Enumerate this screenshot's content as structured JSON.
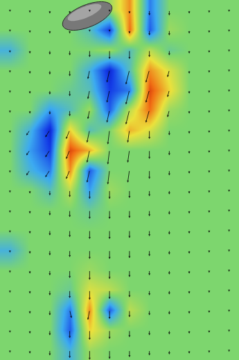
{
  "chart_data": {
    "type": "heatmap",
    "tick_labels": false,
    "grid": false,
    "x": [
      0,
      1,
      2,
      3,
      4,
      5,
      6,
      7,
      8,
      9,
      10,
      11
    ],
    "y": [
      0,
      1,
      2,
      3,
      4,
      5,
      6,
      7,
      8,
      9,
      10,
      11,
      12,
      13,
      14,
      15,
      16,
      17
    ],
    "xlim": [
      -0.5,
      11.5
    ],
    "ylim": [
      17.5,
      -0.5
    ],
    "zlim": [
      -1,
      1
    ],
    "z": [
      [
        0,
        0,
        0,
        0,
        0,
        0.1,
        0.6,
        -0.5,
        0,
        0,
        0,
        0
      ],
      [
        0,
        0,
        0,
        0,
        -0.2,
        -0.7,
        0.7,
        -0.6,
        0.1,
        0,
        0,
        0
      ],
      [
        -0.3,
        0,
        0,
        0,
        0,
        0.1,
        -0.2,
        0.2,
        -0.1,
        0,
        0,
        0
      ],
      [
        0,
        0,
        0,
        0,
        -0.3,
        -0.8,
        -0.2,
        0.6,
        0.3,
        0,
        0,
        0
      ],
      [
        0,
        0,
        0,
        -0.1,
        -0.2,
        -0.7,
        -0.5,
        0.8,
        0.4,
        0,
        0,
        0
      ],
      [
        0,
        0,
        -0.4,
        -0.2,
        0.1,
        -0.6,
        0.2,
        0.7,
        0.1,
        0,
        0,
        0
      ],
      [
        0,
        -0.3,
        -0.8,
        0.4,
        -0.2,
        0,
        0.5,
        0.3,
        0,
        0,
        0,
        0
      ],
      [
        0,
        -0.4,
        -0.7,
        0.8,
        0.5,
        0,
        0,
        0,
        0,
        0,
        0,
        0
      ],
      [
        0,
        -0.3,
        -0.5,
        0.6,
        -0.6,
        0,
        0,
        0,
        0,
        0,
        0,
        0
      ],
      [
        0,
        0,
        -0.2,
        0.2,
        -0.4,
        0.1,
        0,
        0,
        0,
        0,
        0,
        0
      ],
      [
        0,
        0,
        0,
        0,
        -0.1,
        0,
        0,
        0,
        0,
        0,
        0,
        0
      ],
      [
        0,
        0,
        0,
        0,
        0,
        0,
        0,
        0,
        0,
        0,
        0,
        0
      ],
      [
        -0.3,
        0,
        0,
        0,
        0,
        0,
        0,
        0,
        0,
        0,
        0,
        0
      ],
      [
        0,
        0,
        0,
        0,
        0.1,
        0,
        0,
        0,
        0,
        0,
        0,
        0
      ],
      [
        0,
        0,
        0,
        -0.1,
        0.3,
        0.2,
        0,
        0,
        0,
        0,
        0,
        0
      ],
      [
        0,
        0,
        0,
        -0.5,
        0.6,
        -0.6,
        0.2,
        0,
        0,
        0,
        0,
        0
      ],
      [
        0,
        0,
        0,
        -0.6,
        0.4,
        0.1,
        0,
        0,
        0,
        0,
        0,
        0
      ],
      [
        0,
        0,
        0,
        -0.3,
        0.1,
        0,
        0,
        0,
        0,
        0,
        0,
        0
      ]
    ],
    "vectors": {
      "u": [
        [
          0,
          0,
          0,
          0,
          0,
          0,
          0,
          0,
          0,
          0,
          0,
          0
        ],
        [
          0,
          0,
          0,
          0,
          0,
          0,
          0,
          0,
          0,
          0,
          0,
          0
        ],
        [
          0,
          0,
          0,
          0,
          0,
          0,
          0,
          0,
          0,
          0,
          0,
          0
        ],
        [
          0,
          0,
          0,
          0,
          -0.1,
          -0.15,
          -0.2,
          -0.2,
          -0.1,
          0,
          0,
          0
        ],
        [
          0,
          0,
          0,
          0,
          -0.1,
          -0.15,
          -0.2,
          -0.2,
          -0.1,
          0,
          0,
          0
        ],
        [
          0,
          0,
          0,
          0,
          -0.1,
          -0.15,
          -0.2,
          -0.2,
          -0.1,
          0,
          0,
          0
        ],
        [
          0,
          -0.2,
          -0.25,
          -0.2,
          -0.15,
          -0.1,
          -0.1,
          0,
          0,
          0,
          0,
          0
        ],
        [
          0,
          -0.2,
          -0.25,
          -0.2,
          -0.15,
          -0.1,
          -0.1,
          0,
          0,
          0,
          0,
          0
        ],
        [
          0,
          -0.2,
          -0.25,
          -0.2,
          -0.15,
          -0.1,
          -0.1,
          0,
          0,
          0,
          0,
          0
        ],
        [
          0,
          0,
          0,
          0,
          0,
          0,
          0,
          0,
          0,
          0,
          0,
          0
        ],
        [
          0,
          0,
          0,
          0,
          0,
          0,
          0,
          0,
          0,
          0,
          0,
          0
        ],
        [
          0,
          0,
          0,
          0,
          0,
          0,
          0,
          0,
          0,
          0,
          0,
          0
        ],
        [
          0,
          0,
          0,
          0,
          0,
          0,
          0,
          0,
          0,
          0,
          0,
          0
        ],
        [
          0,
          0,
          0,
          0,
          0,
          0,
          0,
          0,
          0,
          0,
          0,
          0
        ],
        [
          0,
          0,
          0,
          0,
          0,
          0,
          0,
          0,
          0,
          0,
          0,
          0
        ],
        [
          0,
          0,
          0,
          0.1,
          -0.1,
          0,
          0,
          0,
          0,
          0,
          0,
          0
        ],
        [
          0,
          0,
          0,
          0,
          0,
          0,
          0,
          0,
          0,
          0,
          0,
          0
        ],
        [
          0,
          0,
          0,
          0,
          0,
          0,
          0,
          0,
          0,
          0,
          0,
          0
        ]
      ],
      "v": [
        [
          0.1,
          0.15,
          0.2,
          0.2,
          0.1,
          0.1,
          0.2,
          0.3,
          0.3,
          0.2,
          0.15,
          0.1
        ],
        [
          0.1,
          0.15,
          0.2,
          0.2,
          0.1,
          0.1,
          0.2,
          0.3,
          0.3,
          0.2,
          0.15,
          0.1
        ],
        [
          0.15,
          0.2,
          0.25,
          0.3,
          0.4,
          0.5,
          0.5,
          0.4,
          0.3,
          0.2,
          0.15,
          0.1
        ],
        [
          0.15,
          0.2,
          0.25,
          0.35,
          0.5,
          0.7,
          0.8,
          0.7,
          0.4,
          0.2,
          0.15,
          0.1
        ],
        [
          0.15,
          0.2,
          0.25,
          0.35,
          0.5,
          0.7,
          0.8,
          0.7,
          0.4,
          0.2,
          0.15,
          0.1
        ],
        [
          0.15,
          0.2,
          0.25,
          0.35,
          0.5,
          0.7,
          0.8,
          0.7,
          0.4,
          0.2,
          0.15,
          0.1
        ],
        [
          0.15,
          0.3,
          0.4,
          0.5,
          0.7,
          0.8,
          0.7,
          0.5,
          0.3,
          0.2,
          0.15,
          0.1
        ],
        [
          0.15,
          0.3,
          0.4,
          0.5,
          0.7,
          0.8,
          0.7,
          0.5,
          0.3,
          0.2,
          0.15,
          0.1
        ],
        [
          0.15,
          0.3,
          0.4,
          0.5,
          0.7,
          0.8,
          0.7,
          0.5,
          0.3,
          0.2,
          0.15,
          0.1
        ],
        [
          0.15,
          0.2,
          0.3,
          0.4,
          0.5,
          0.5,
          0.45,
          0.35,
          0.25,
          0.2,
          0.15,
          0.1
        ],
        [
          0.15,
          0.2,
          0.3,
          0.4,
          0.5,
          0.5,
          0.45,
          0.35,
          0.25,
          0.2,
          0.15,
          0.1
        ],
        [
          0.15,
          0.2,
          0.3,
          0.4,
          0.5,
          0.5,
          0.45,
          0.35,
          0.25,
          0.2,
          0.15,
          0.1
        ],
        [
          0.15,
          0.2,
          0.3,
          0.4,
          0.5,
          0.5,
          0.45,
          0.35,
          0.25,
          0.2,
          0.15,
          0.1
        ],
        [
          0.15,
          0.2,
          0.3,
          0.45,
          0.55,
          0.5,
          0.4,
          0.3,
          0.25,
          0.2,
          0.15,
          0.1
        ],
        [
          0.15,
          0.2,
          0.3,
          0.45,
          0.55,
          0.5,
          0.4,
          0.3,
          0.25,
          0.2,
          0.15,
          0.1
        ],
        [
          0.15,
          0.2,
          0.3,
          0.45,
          0.55,
          0.5,
          0.4,
          0.3,
          0.25,
          0.2,
          0.15,
          0.1
        ],
        [
          0.15,
          0.2,
          0.3,
          0.45,
          0.55,
          0.5,
          0.4,
          0.3,
          0.25,
          0.2,
          0.15,
          0.1
        ],
        [
          0.15,
          0.2,
          0.3,
          0.45,
          0.55,
          0.5,
          0.4,
          0.3,
          0.25,
          0.2,
          0.15,
          0.1
        ]
      ]
    }
  }
}
